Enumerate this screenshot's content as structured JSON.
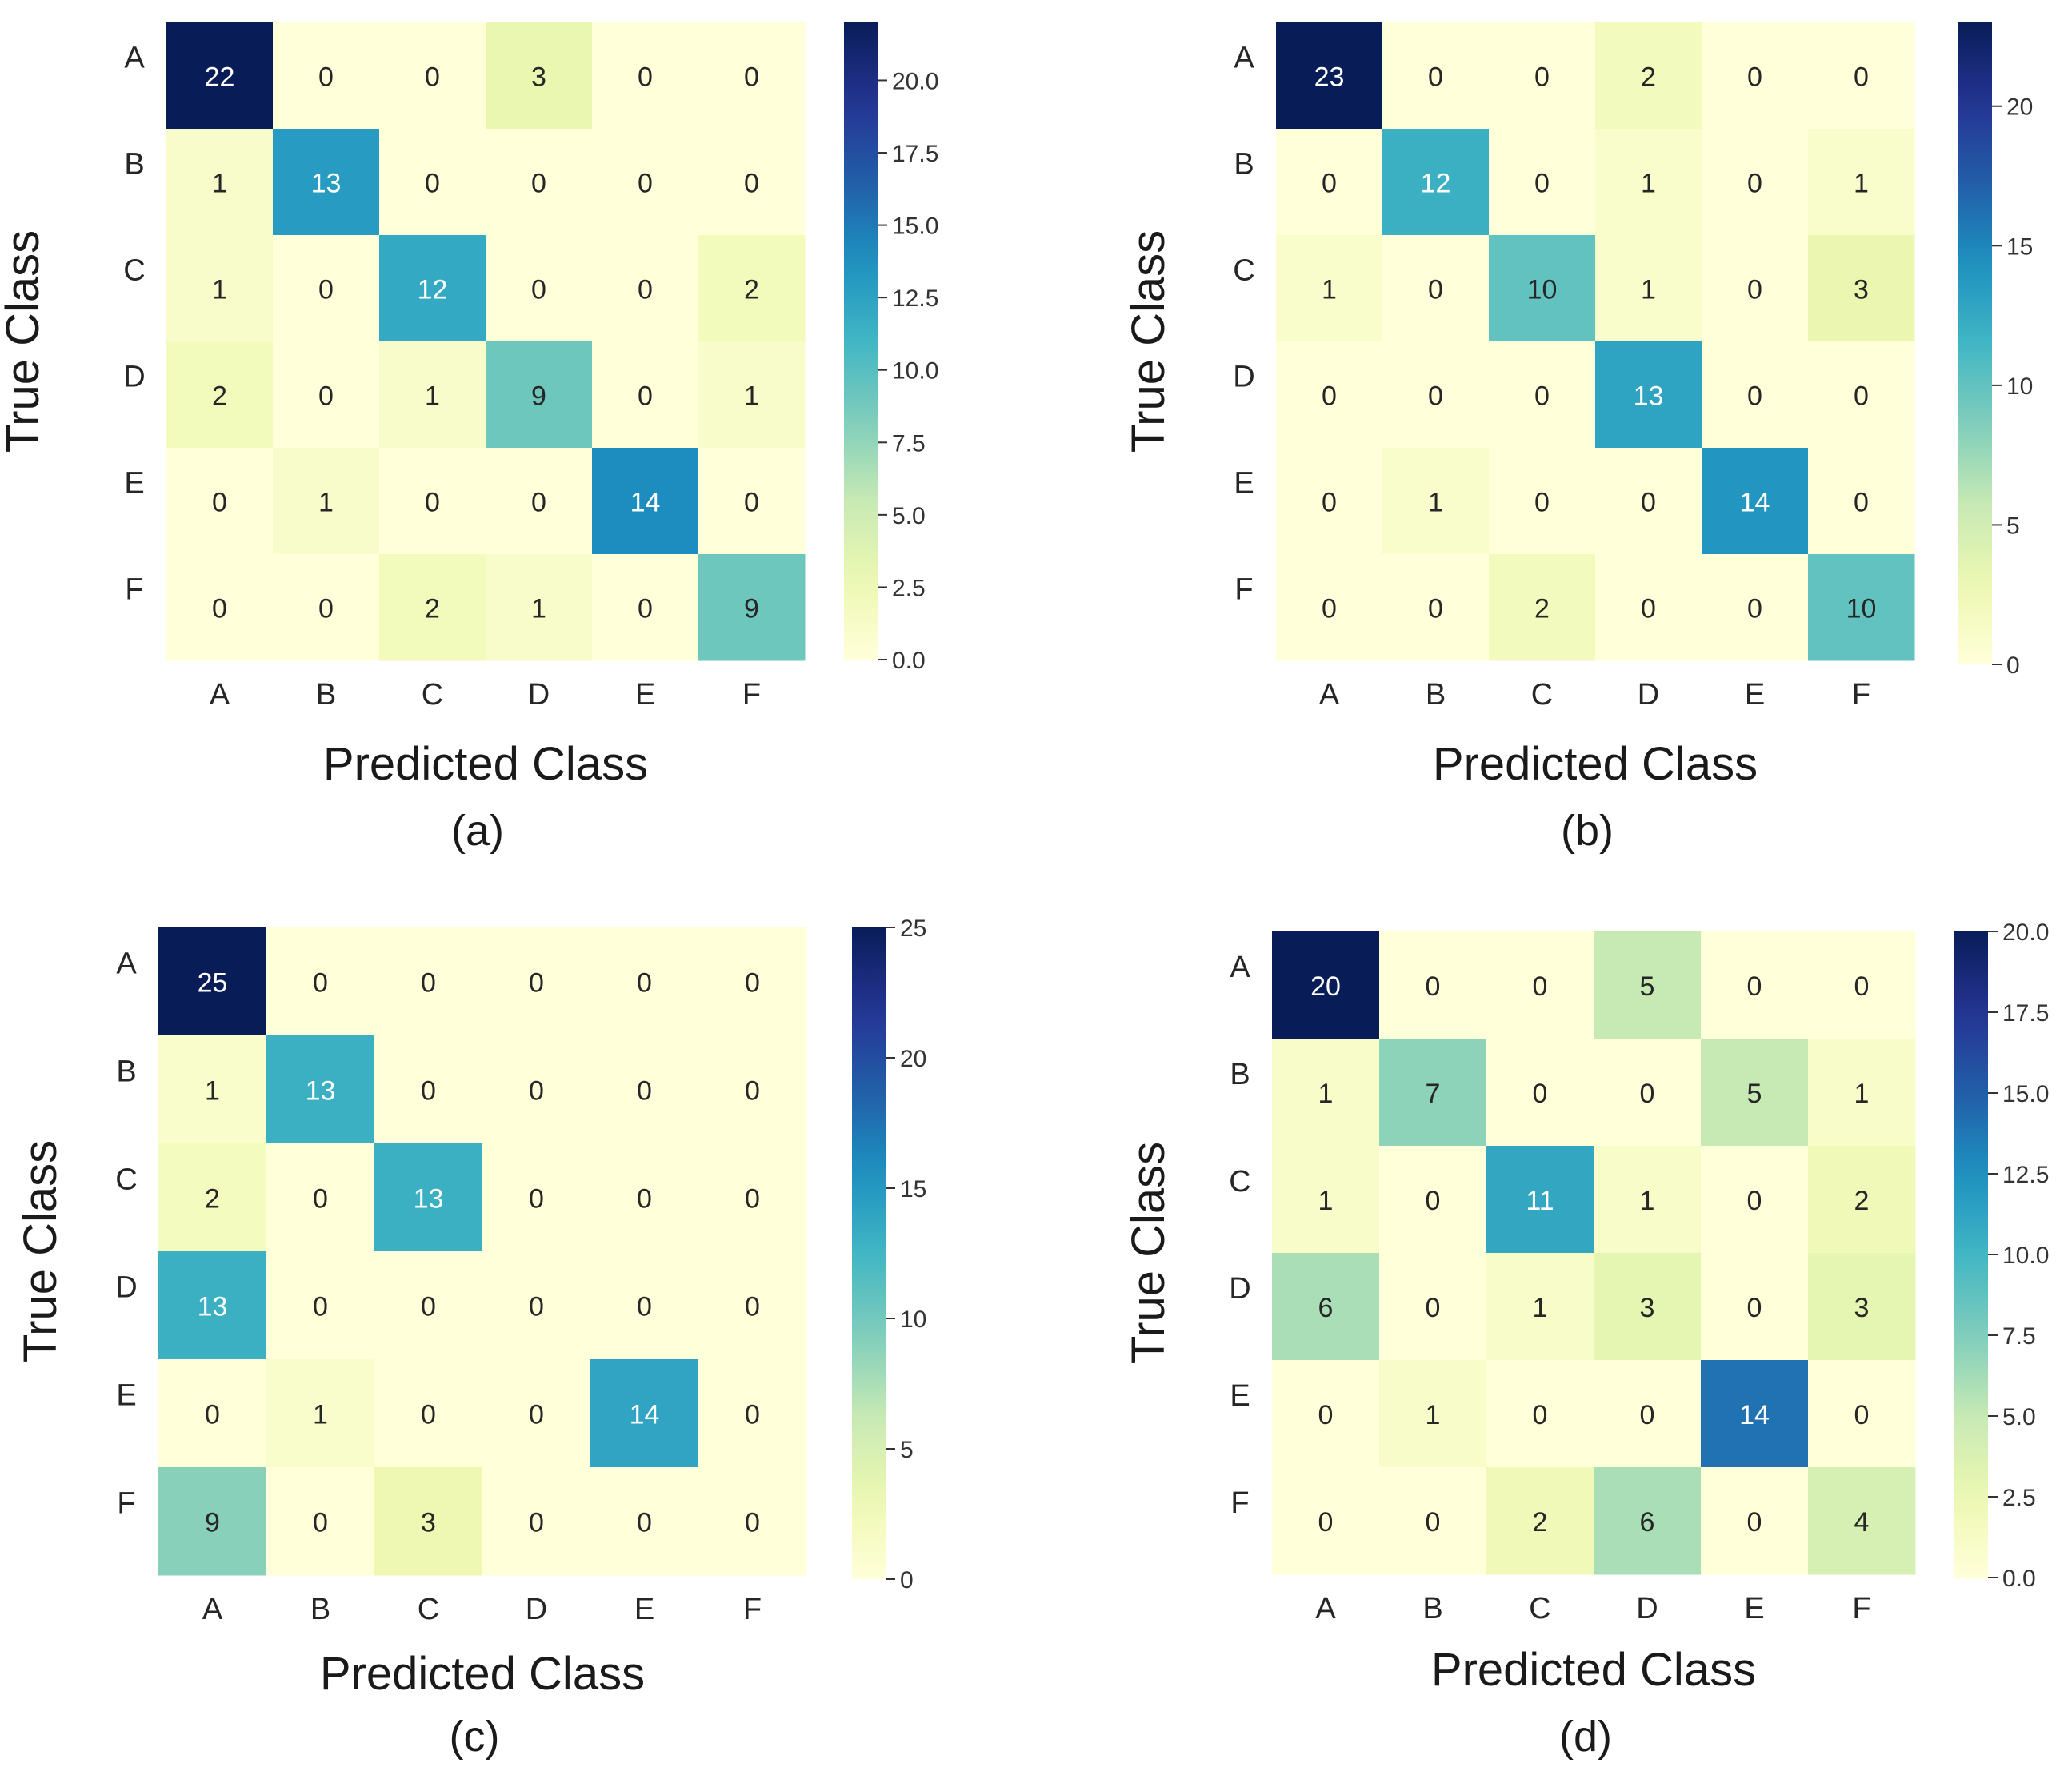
{
  "figure": {
    "panels": [
      "(a)",
      "(b)",
      "(c)",
      "(d)"
    ]
  },
  "chart_data": [
    {
      "type": "heatmap",
      "panel_label": "(a)",
      "xlabel": "Predicted Class",
      "ylabel": "True Class",
      "x_categories": [
        "A",
        "B",
        "C",
        "D",
        "E",
        "F"
      ],
      "y_categories": [
        "A",
        "B",
        "C",
        "D",
        "E",
        "F"
      ],
      "values": [
        [
          22,
          0,
          0,
          3,
          0,
          0
        ],
        [
          1,
          13,
          0,
          0,
          0,
          0
        ],
        [
          1,
          0,
          12,
          0,
          0,
          2
        ],
        [
          2,
          0,
          1,
          9,
          0,
          1
        ],
        [
          0,
          1,
          0,
          0,
          14,
          0
        ],
        [
          0,
          0,
          2,
          1,
          0,
          9
        ]
      ],
      "colorbar": {
        "range": [
          0,
          22
        ],
        "ticks": [
          "0.0",
          "2.5",
          "5.0",
          "7.5",
          "10.0",
          "12.5",
          "15.0",
          "17.5",
          "20.0"
        ],
        "tick_values": [
          0,
          2.5,
          5,
          7.5,
          10,
          12.5,
          15,
          17.5,
          20
        ]
      },
      "colormap": "YlGnBu"
    },
    {
      "type": "heatmap",
      "panel_label": "(b)",
      "xlabel": "Predicted Class",
      "ylabel": "True Class",
      "x_categories": [
        "A",
        "B",
        "C",
        "D",
        "E",
        "F"
      ],
      "y_categories": [
        "A",
        "B",
        "C",
        "D",
        "E",
        "F"
      ],
      "values": [
        [
          23,
          0,
          0,
          2,
          0,
          0
        ],
        [
          0,
          12,
          0,
          1,
          0,
          1
        ],
        [
          1,
          0,
          10,
          1,
          0,
          3
        ],
        [
          0,
          0,
          0,
          13,
          0,
          0
        ],
        [
          0,
          1,
          0,
          0,
          14,
          0
        ],
        [
          0,
          0,
          2,
          0,
          0,
          10
        ]
      ],
      "colorbar": {
        "range": [
          0,
          23
        ],
        "ticks": [
          "0",
          "5",
          "10",
          "15",
          "20"
        ],
        "tick_values": [
          0,
          5,
          10,
          15,
          20
        ]
      },
      "colormap": "YlGnBu"
    },
    {
      "type": "heatmap",
      "panel_label": "(c)",
      "xlabel": "Predicted Class",
      "ylabel": "True Class",
      "x_categories": [
        "A",
        "B",
        "C",
        "D",
        "E",
        "F"
      ],
      "y_categories": [
        "A",
        "B",
        "C",
        "D",
        "E",
        "F"
      ],
      "values": [
        [
          25,
          0,
          0,
          0,
          0,
          0
        ],
        [
          1,
          13,
          0,
          0,
          0,
          0
        ],
        [
          2,
          0,
          13,
          0,
          0,
          0
        ],
        [
          13,
          0,
          0,
          0,
          0,
          0
        ],
        [
          0,
          1,
          0,
          0,
          14,
          0
        ],
        [
          9,
          0,
          3,
          0,
          0,
          0
        ]
      ],
      "colorbar": {
        "range": [
          0,
          25
        ],
        "ticks": [
          "0",
          "5",
          "10",
          "15",
          "20",
          "25"
        ],
        "tick_values": [
          0,
          5,
          10,
          15,
          20,
          25
        ]
      },
      "colormap": "YlGnBu"
    },
    {
      "type": "heatmap",
      "panel_label": "(d)",
      "xlabel": "Predicted Class",
      "ylabel": "True Class",
      "x_categories": [
        "A",
        "B",
        "C",
        "D",
        "E",
        "F"
      ],
      "y_categories": [
        "A",
        "B",
        "C",
        "D",
        "E",
        "F"
      ],
      "values": [
        [
          20,
          0,
          0,
          5,
          0,
          0
        ],
        [
          1,
          7,
          0,
          0,
          5,
          1
        ],
        [
          1,
          0,
          11,
          1,
          0,
          2
        ],
        [
          6,
          0,
          1,
          3,
          0,
          3
        ],
        [
          0,
          1,
          0,
          0,
          14,
          0
        ],
        [
          0,
          0,
          2,
          6,
          0,
          4
        ]
      ],
      "colorbar": {
        "range": [
          0,
          20
        ],
        "ticks": [
          "0.0",
          "2.5",
          "5.0",
          "7.5",
          "10.0",
          "12.5",
          "15.0",
          "17.5",
          "20.0"
        ],
        "tick_values": [
          0,
          2.5,
          5,
          7.5,
          10,
          12.5,
          15,
          17.5,
          20
        ]
      },
      "colormap": "YlGnBu"
    }
  ]
}
